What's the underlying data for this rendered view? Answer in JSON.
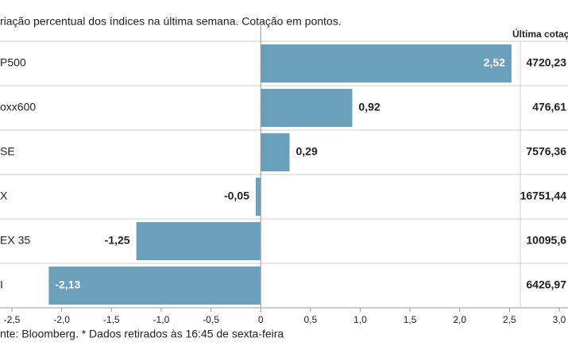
{
  "chart_data": {
    "type": "bar",
    "orientation": "horizontal",
    "title": "riação percentual dos índices na última semana. Cotação em pontos.",
    "right_header": "Última cotaç",
    "categories": [
      "P500",
      "oxx600",
      "SE",
      "X",
      "EX 35",
      "I"
    ],
    "values": [
      2.52,
      0.92,
      0.29,
      -0.05,
      -1.25,
      -2.13
    ],
    "value_labels": [
      "2,52",
      "0,92",
      "0,29",
      "-0,05",
      "-1,25",
      "-2,13"
    ],
    "last_quotes": [
      "4720,23",
      "476,61",
      "7576,36",
      "16751,44",
      "10095,6",
      "6426,97"
    ],
    "color": "#6aa0bb",
    "xlim": [
      -2.5,
      3.0
    ],
    "xticks": [
      {
        "value": -2.5,
        "label": "-2,5"
      },
      {
        "value": -2.0,
        "label": "-2,0"
      },
      {
        "value": -1.5,
        "label": "-1,5"
      },
      {
        "value": -1.0,
        "label": "-1,0"
      },
      {
        "value": -0.5,
        "label": "-0,5"
      },
      0,
      {
        "value": 0.5,
        "label": "0,5"
      },
      {
        "value": 1.0,
        "label": "1,0"
      },
      {
        "value": 1.5,
        "label": "1,5"
      },
      {
        "value": 2.0,
        "label": "2,0"
      },
      {
        "value": 2.5,
        "label": "2,5"
      },
      {
        "value": 3.0,
        "label": "3,0"
      }
    ],
    "footer": "nte: Bloomberg.  * Dados retirados às 16:45 de sexta-feira"
  }
}
